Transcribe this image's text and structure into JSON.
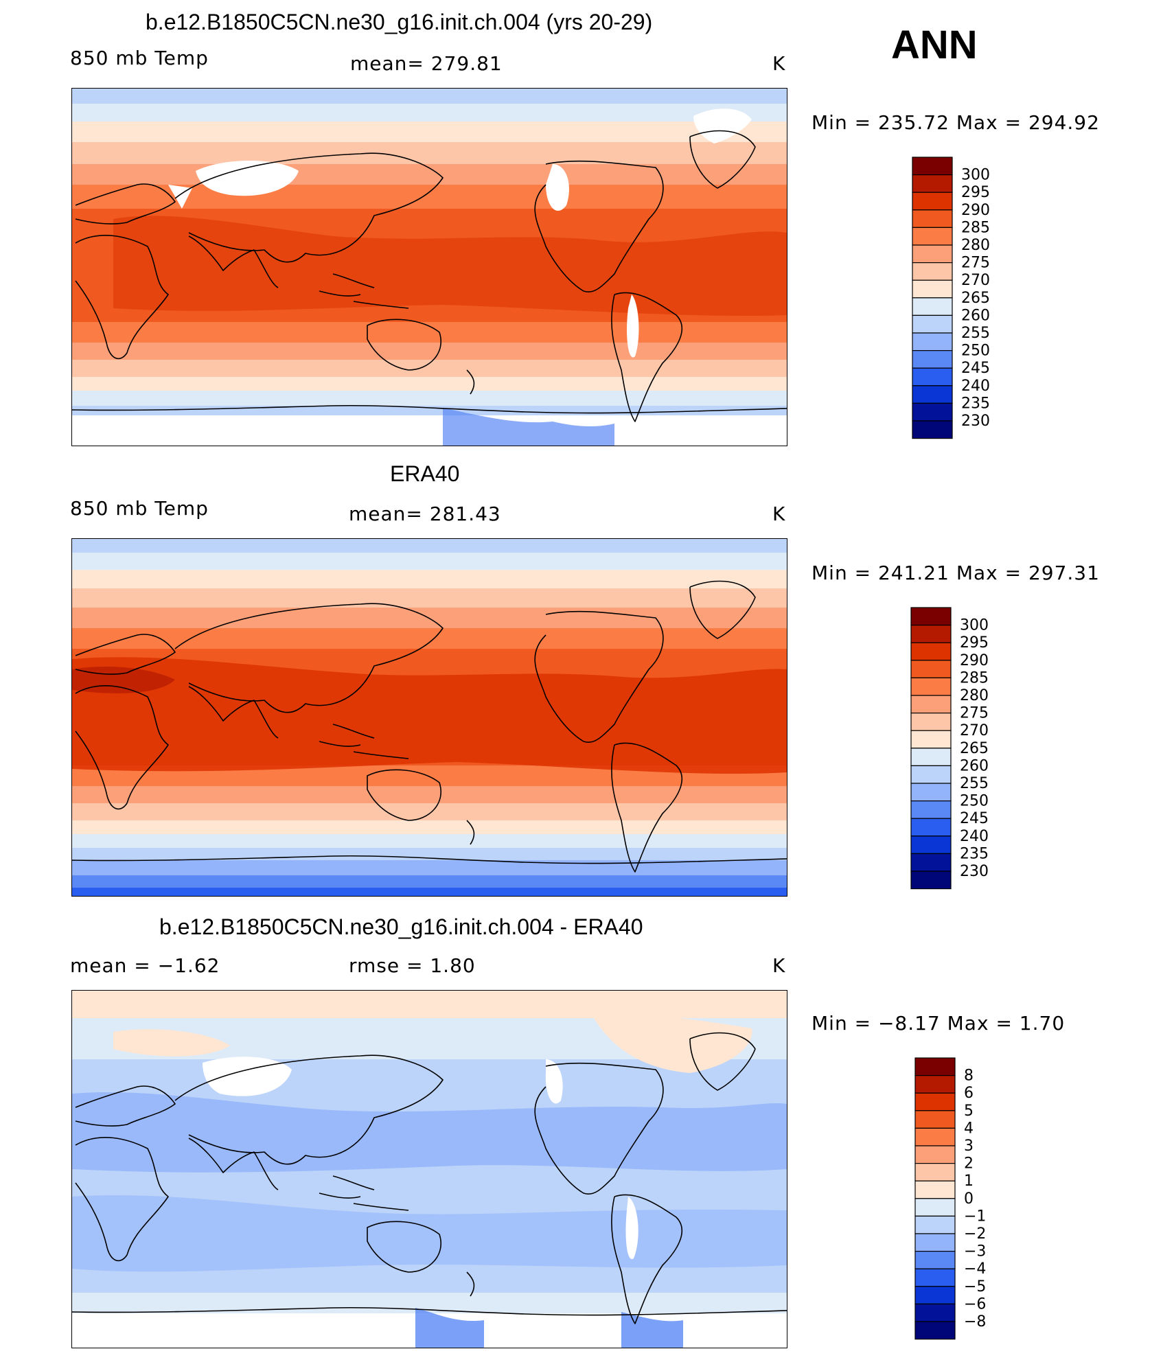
{
  "season": "ANN",
  "panels": [
    {
      "title": "b.e12.B1850C5CN.ne30_g16.init.ch.004 (yrs 20-29)",
      "left_label": "850 mb Temp",
      "center_label": "mean=  279.81",
      "units": "K",
      "minmax": "Min  =  235.72  Max  =  294.92",
      "colorbar_levels": [
        "300",
        "295",
        "290",
        "285",
        "280",
        "275",
        "270",
        "265",
        "260",
        "255",
        "250",
        "245",
        "240",
        "235",
        "230"
      ]
    },
    {
      "title": "ERA40",
      "left_label": "850 mb Temp",
      "center_label": "mean=  281.43",
      "units": "K",
      "minmax": "Min  =  241.21  Max  =  297.31",
      "colorbar_levels": [
        "300",
        "295",
        "290",
        "285",
        "280",
        "275",
        "270",
        "265",
        "260",
        "255",
        "250",
        "245",
        "240",
        "235",
        "230"
      ]
    },
    {
      "title": "b.e12.B1850C5CN.ne30_g16.init.ch.004 - ERA40",
      "left_label": "mean  =    −1.62",
      "center_label": "rmse  =     1.80",
      "units": "K",
      "minmax": "Min  =    −8.17  Max  =     1.70",
      "colorbar_levels": [
        "8",
        "6",
        "5",
        "4",
        "3",
        "2",
        "1",
        "0",
        "−1",
        "−2",
        "−3",
        "−4",
        "−5",
        "−6",
        "−8"
      ]
    }
  ],
  "colors": {
    "abs_scale": [
      "#7a0000",
      "#b31a00",
      "#dd3300",
      "#f05a20",
      "#fb7c45",
      "#fca07a",
      "#fdc6a8",
      "#fee6d2",
      "#ddeaf8",
      "#bcd4fa",
      "#93b4fa",
      "#5a88f5",
      "#2a5ef0",
      "#0a36d6",
      "#02139a",
      "#000678"
    ],
    "diff_scale": [
      "#7a0000",
      "#b31a00",
      "#dd3300",
      "#f05a20",
      "#fb7c45",
      "#fca07a",
      "#fdc6a8",
      "#fee6d2",
      "#ddeaf8",
      "#bcd4fa",
      "#93b4fa",
      "#5a88f5",
      "#2a5ef0",
      "#0a36d6",
      "#02139a",
      "#000678"
    ]
  }
}
